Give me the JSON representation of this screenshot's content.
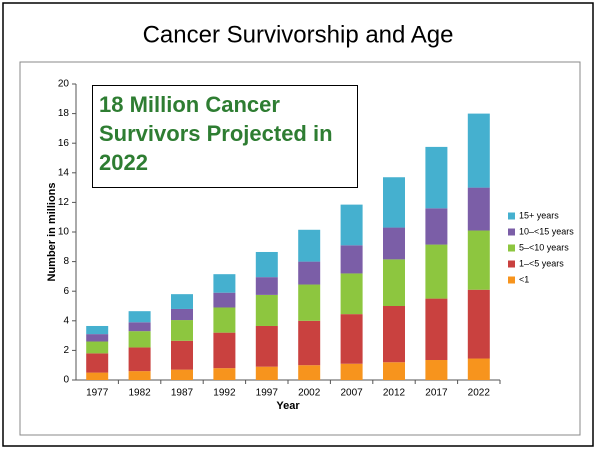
{
  "chart_data": {
    "type": "stacked_bar",
    "title": "Cancer Survivorship and Age",
    "annotation": "18 Million Cancer Survivors Projected in 2022",
    "x_label": "Year",
    "y_label": "Number in millions",
    "categories": [
      "1977",
      "1982",
      "1987",
      "1992",
      "1997",
      "2002",
      "2007",
      "2012",
      "2017",
      "2022"
    ],
    "series": [
      {
        "name": "<1",
        "color": "#f7941d",
        "values": [
          0.5,
          0.6,
          0.7,
          0.8,
          0.9,
          1.0,
          1.1,
          1.2,
          1.35,
          1.45
        ]
      },
      {
        "name": "1–<5 years",
        "color": "#c9413f",
        "values": [
          1.3,
          1.6,
          1.95,
          2.4,
          2.75,
          3.0,
          3.35,
          3.8,
          4.15,
          4.65
        ]
      },
      {
        "name": "5–<10 years",
        "color": "#8dc63f",
        "values": [
          0.8,
          1.1,
          1.4,
          1.7,
          2.1,
          2.45,
          2.75,
          3.15,
          3.65,
          4.0
        ]
      },
      {
        "name": "10–<15 years",
        "color": "#7b5ea7",
        "values": [
          0.5,
          0.6,
          0.75,
          1.0,
          1.2,
          1.55,
          1.9,
          2.15,
          2.45,
          2.9
        ]
      },
      {
        "name": "15+ years",
        "color": "#45b0cf",
        "values": [
          0.55,
          0.75,
          1.0,
          1.25,
          1.7,
          2.15,
          2.75,
          3.4,
          4.15,
          5.0
        ]
      }
    ],
    "ylim": [
      0,
      20
    ],
    "yticks": [
      0,
      2,
      4,
      6,
      8,
      10,
      12,
      14,
      16,
      18,
      20
    ],
    "legend": "right"
  }
}
